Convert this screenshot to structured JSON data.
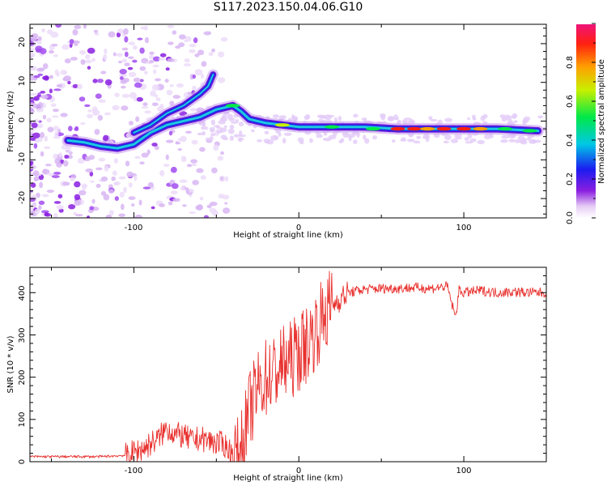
{
  "title": "S117.2023.150.04.06.G10",
  "chart_data": [
    {
      "type": "heatmap",
      "title": "S117.2023.150.04.06.G10",
      "xlabel": "Height of straight line (km)",
      "ylabel": "Frequency (Hz)",
      "xlim": [
        -163,
        150
      ],
      "ylim": [
        -25,
        25
      ],
      "xticks": [
        "-100",
        "0",
        "100"
      ],
      "yticks": [
        "20",
        "10",
        "0",
        "-10",
        "-20"
      ],
      "colorbar": {
        "label": "Normalized spectral amplitude",
        "range": [
          0,
          1
        ],
        "ticks": [
          "0.0",
          "0.2",
          "0.4",
          "0.6",
          "0.8"
        ]
      },
      "ridge_lower": {
        "x": [
          -140,
          -130,
          -120,
          -110,
          -100,
          -90,
          -80,
          -70,
          -60,
          -55,
          -50,
          -45,
          -40,
          -35,
          -30,
          -20,
          -10,
          0,
          20,
          40,
          60,
          80,
          100,
          120,
          145
        ],
        "y": [
          -5,
          -5.5,
          -6.5,
          -7,
          -6,
          -3,
          -1,
          0,
          1,
          2,
          3,
          3.5,
          4,
          2.5,
          0.5,
          -0.5,
          -1,
          -1.5,
          -1.5,
          -1.5,
          -2,
          -2,
          -2,
          -2,
          -2.5
        ]
      },
      "ridge_upper": {
        "x": [
          -100,
          -90,
          -80,
          -70,
          -60,
          -55,
          -52
        ],
        "y": [
          -3,
          -1,
          2,
          4,
          7,
          9,
          12
        ]
      }
    },
    {
      "type": "line",
      "title": "",
      "xlabel": "Height of straight line (km)",
      "ylabel": "SNR (10 * v/v)",
      "xlim": [
        -163,
        150
      ],
      "ylim": [
        0,
        460
      ],
      "xticks": [
        "-100",
        "0",
        "100"
      ],
      "yticks": [
        "0",
        "100",
        "200",
        "300",
        "400"
      ],
      "color": "#e8312e",
      "series": [
        {
          "x": [
            -163,
            -140,
            -120,
            -105,
            -95,
            -85,
            -80,
            -75,
            -70,
            -65,
            -60,
            -55,
            -50,
            -45,
            -40,
            -37,
            -33,
            -30,
            -25,
            -20,
            -15,
            -10,
            -5,
            0,
            5,
            10,
            15,
            20,
            25,
            30,
            40,
            50,
            60,
            70,
            80,
            90,
            95,
            97,
            100,
            110,
            120,
            130,
            140,
            150
          ],
          "y": [
            12,
            12,
            12,
            15,
            30,
            55,
            80,
            65,
            60,
            50,
            55,
            50,
            45,
            40,
            18,
            10,
            60,
            120,
            170,
            200,
            210,
            230,
            240,
            260,
            280,
            310,
            345,
            370,
            385,
            400,
            408,
            410,
            410,
            412,
            410,
            415,
            340,
            405,
            400,
            405,
            400,
            402,
            400,
            400
          ]
        }
      ]
    }
  ]
}
